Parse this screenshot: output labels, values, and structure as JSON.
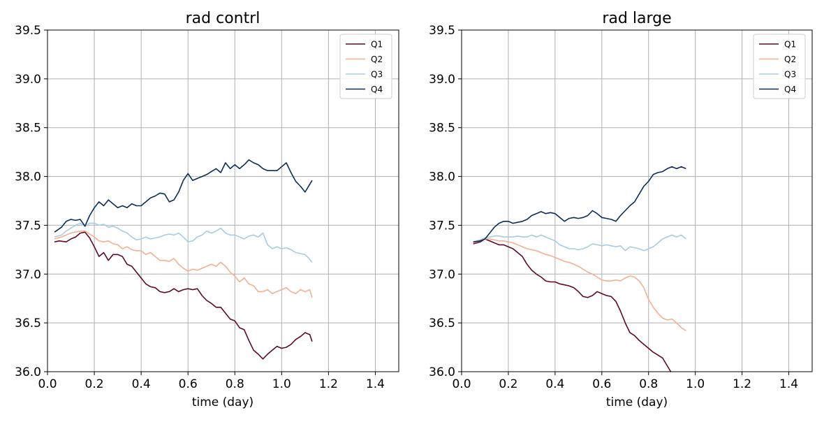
{
  "figure": {
    "panels": [
      {
        "title": "rad contrl",
        "xlabel": "time (day)"
      },
      {
        "title": "rad large",
        "xlabel": "time (day)"
      }
    ]
  },
  "chart_data": [
    {
      "type": "line",
      "title": "rad contrl",
      "xlabel": "time (day)",
      "ylabel": "",
      "xlim": [
        0.0,
        1.5
      ],
      "ylim": [
        36.0,
        39.5
      ],
      "xticks": [
        "0.0",
        "0.2",
        "0.4",
        "0.6",
        "0.8",
        "1.0",
        "1.2",
        "1.4"
      ],
      "yticks": [
        "36.0",
        "36.5",
        "37.0",
        "37.5",
        "38.0",
        "38.5",
        "39.0",
        "39.5"
      ],
      "grid": true,
      "legend_position": "top-right",
      "series": [
        {
          "name": "Q1",
          "color": "#5c0a2a",
          "x": [
            0.03,
            0.05,
            0.08,
            0.1,
            0.12,
            0.14,
            0.16,
            0.18,
            0.2,
            0.22,
            0.24,
            0.26,
            0.28,
            0.3,
            0.32,
            0.34,
            0.36,
            0.38,
            0.4,
            0.42,
            0.44,
            0.46,
            0.48,
            0.5,
            0.52,
            0.54,
            0.56,
            0.58,
            0.6,
            0.62,
            0.64,
            0.66,
            0.68,
            0.7,
            0.72,
            0.74,
            0.76,
            0.78,
            0.8,
            0.82,
            0.84,
            0.86,
            0.88,
            0.9,
            0.92,
            0.94,
            0.96,
            0.98,
            1.0,
            1.02,
            1.04,
            1.06,
            1.08,
            1.1,
            1.12,
            1.13
          ],
          "y": [
            37.33,
            37.34,
            37.33,
            37.36,
            37.38,
            37.42,
            37.43,
            37.37,
            37.28,
            37.18,
            37.22,
            37.14,
            37.2,
            37.2,
            37.18,
            37.1,
            37.08,
            37.02,
            36.96,
            36.9,
            36.87,
            36.86,
            36.82,
            36.81,
            36.82,
            36.85,
            36.82,
            36.84,
            36.85,
            36.84,
            36.85,
            36.78,
            36.73,
            36.7,
            36.66,
            36.66,
            36.6,
            36.54,
            36.52,
            36.45,
            36.43,
            36.32,
            36.22,
            36.18,
            36.13,
            36.18,
            36.22,
            36.26,
            36.24,
            36.25,
            36.28,
            36.33,
            36.36,
            36.4,
            36.38,
            36.31
          ]
        },
        {
          "name": "Q2",
          "color": "#f3b093",
          "x": [
            0.03,
            0.06,
            0.08,
            0.1,
            0.12,
            0.14,
            0.16,
            0.18,
            0.2,
            0.22,
            0.24,
            0.26,
            0.28,
            0.3,
            0.32,
            0.34,
            0.36,
            0.38,
            0.4,
            0.42,
            0.44,
            0.46,
            0.48,
            0.5,
            0.52,
            0.54,
            0.56,
            0.58,
            0.6,
            0.62,
            0.64,
            0.66,
            0.68,
            0.7,
            0.72,
            0.74,
            0.76,
            0.78,
            0.8,
            0.82,
            0.84,
            0.86,
            0.88,
            0.9,
            0.92,
            0.94,
            0.96,
            0.98,
            1.0,
            1.02,
            1.04,
            1.06,
            1.08,
            1.1,
            1.12,
            1.13
          ],
          "y": [
            37.36,
            37.38,
            37.4,
            37.42,
            37.43,
            37.44,
            37.44,
            37.41,
            37.38,
            37.34,
            37.33,
            37.34,
            37.31,
            37.3,
            37.26,
            37.28,
            37.25,
            37.24,
            37.24,
            37.2,
            37.22,
            37.18,
            37.14,
            37.14,
            37.13,
            37.16,
            37.1,
            37.06,
            37.03,
            37.05,
            37.04,
            37.06,
            37.08,
            37.1,
            37.08,
            37.12,
            37.08,
            37.02,
            36.98,
            36.92,
            36.96,
            36.9,
            36.88,
            36.82,
            36.82,
            36.84,
            36.8,
            36.82,
            36.84,
            36.86,
            36.82,
            36.8,
            36.84,
            36.82,
            36.84,
            36.76
          ]
        },
        {
          "name": "Q3",
          "color": "#a6cde2",
          "x": [
            0.03,
            0.06,
            0.08,
            0.1,
            0.12,
            0.14,
            0.16,
            0.18,
            0.2,
            0.22,
            0.24,
            0.26,
            0.28,
            0.3,
            0.32,
            0.34,
            0.36,
            0.38,
            0.4,
            0.42,
            0.44,
            0.46,
            0.48,
            0.5,
            0.52,
            0.54,
            0.56,
            0.58,
            0.6,
            0.62,
            0.64,
            0.66,
            0.68,
            0.7,
            0.72,
            0.74,
            0.76,
            0.78,
            0.8,
            0.82,
            0.84,
            0.86,
            0.88,
            0.9,
            0.92,
            0.94,
            0.96,
            0.98,
            1.0,
            1.02,
            1.04,
            1.06,
            1.08,
            1.1,
            1.12,
            1.13
          ],
          "y": [
            37.38,
            37.4,
            37.44,
            37.47,
            37.5,
            37.52,
            37.49,
            37.52,
            37.52,
            37.5,
            37.51,
            37.48,
            37.49,
            37.47,
            37.44,
            37.42,
            37.38,
            37.35,
            37.36,
            37.38,
            37.36,
            37.37,
            37.38,
            37.4,
            37.41,
            37.4,
            37.42,
            37.38,
            37.33,
            37.34,
            37.38,
            37.4,
            37.44,
            37.42,
            37.44,
            37.47,
            37.42,
            37.4,
            37.4,
            37.38,
            37.36,
            37.39,
            37.4,
            37.38,
            37.42,
            37.3,
            37.26,
            37.28,
            37.26,
            37.27,
            37.25,
            37.22,
            37.21,
            37.2,
            37.15,
            37.12
          ]
        },
        {
          "name": "Q4",
          "color": "#0c2d57",
          "x": [
            0.03,
            0.06,
            0.08,
            0.1,
            0.12,
            0.14,
            0.16,
            0.18,
            0.2,
            0.22,
            0.24,
            0.26,
            0.28,
            0.3,
            0.32,
            0.34,
            0.36,
            0.38,
            0.4,
            0.42,
            0.44,
            0.46,
            0.48,
            0.5,
            0.52,
            0.54,
            0.56,
            0.58,
            0.6,
            0.62,
            0.64,
            0.66,
            0.68,
            0.7,
            0.72,
            0.74,
            0.76,
            0.78,
            0.8,
            0.82,
            0.84,
            0.86,
            0.88,
            0.9,
            0.92,
            0.94,
            0.96,
            0.98,
            1.0,
            1.02,
            1.04,
            1.06,
            1.08,
            1.1,
            1.12,
            1.13
          ],
          "y": [
            37.43,
            37.48,
            37.54,
            37.56,
            37.55,
            37.56,
            37.49,
            37.6,
            37.68,
            37.74,
            37.7,
            37.76,
            37.72,
            37.68,
            37.7,
            37.68,
            37.72,
            37.7,
            37.7,
            37.74,
            37.78,
            37.8,
            37.83,
            37.82,
            37.74,
            37.76,
            37.84,
            37.96,
            38.03,
            37.96,
            37.98,
            38.0,
            38.02,
            38.05,
            38.08,
            38.04,
            38.14,
            38.08,
            38.12,
            38.08,
            38.12,
            38.17,
            38.14,
            38.12,
            38.08,
            38.06,
            38.06,
            38.06,
            38.1,
            38.14,
            38.04,
            37.95,
            37.9,
            37.84,
            37.92,
            37.96
          ]
        }
      ]
    },
    {
      "type": "line",
      "title": "rad large",
      "xlabel": "time (day)",
      "ylabel": "",
      "xlim": [
        0.0,
        1.5
      ],
      "ylim": [
        36.0,
        39.5
      ],
      "xticks": [
        "0.0",
        "0.2",
        "0.4",
        "0.6",
        "0.8",
        "1.0",
        "1.2",
        "1.4"
      ],
      "yticks": [
        "36.0",
        "36.5",
        "37.0",
        "37.5",
        "38.0",
        "38.5",
        "39.0",
        "39.5"
      ],
      "grid": true,
      "legend_position": "top-right",
      "series": [
        {
          "name": "Q1",
          "color": "#5c0a2a",
          "x": [
            0.05,
            0.08,
            0.1,
            0.12,
            0.14,
            0.16,
            0.18,
            0.2,
            0.22,
            0.24,
            0.26,
            0.28,
            0.3,
            0.32,
            0.34,
            0.36,
            0.38,
            0.4,
            0.42,
            0.44,
            0.46,
            0.48,
            0.5,
            0.52,
            0.54,
            0.56,
            0.58,
            0.6,
            0.62,
            0.64,
            0.66,
            0.68,
            0.7,
            0.72,
            0.74,
            0.76,
            0.78,
            0.8,
            0.82,
            0.84,
            0.86,
            0.88,
            0.9,
            0.92
          ],
          "y": [
            37.31,
            37.33,
            37.36,
            37.34,
            37.32,
            37.3,
            37.3,
            37.28,
            37.26,
            37.22,
            37.18,
            37.1,
            37.04,
            37.0,
            36.97,
            36.93,
            36.92,
            36.92,
            36.9,
            36.89,
            36.88,
            36.86,
            36.82,
            36.77,
            36.76,
            36.78,
            36.82,
            36.8,
            36.78,
            36.77,
            36.72,
            36.62,
            36.5,
            36.4,
            36.37,
            36.32,
            36.28,
            36.24,
            36.2,
            36.17,
            36.14,
            36.06,
            35.98,
            35.9
          ]
        },
        {
          "name": "Q2",
          "color": "#f3b093",
          "x": [
            0.05,
            0.08,
            0.1,
            0.12,
            0.14,
            0.16,
            0.18,
            0.2,
            0.22,
            0.24,
            0.26,
            0.28,
            0.3,
            0.32,
            0.34,
            0.36,
            0.38,
            0.4,
            0.42,
            0.44,
            0.46,
            0.48,
            0.5,
            0.52,
            0.54,
            0.56,
            0.58,
            0.6,
            0.62,
            0.64,
            0.66,
            0.68,
            0.7,
            0.72,
            0.74,
            0.76,
            0.78,
            0.8,
            0.82,
            0.84,
            0.86,
            0.88,
            0.9,
            0.92,
            0.94,
            0.96
          ],
          "y": [
            37.32,
            37.34,
            37.36,
            37.36,
            37.35,
            37.34,
            37.34,
            37.33,
            37.32,
            37.3,
            37.28,
            37.26,
            37.25,
            37.24,
            37.22,
            37.2,
            37.19,
            37.17,
            37.15,
            37.13,
            37.12,
            37.1,
            37.08,
            37.05,
            37.02,
            37.0,
            36.97,
            36.94,
            36.93,
            36.93,
            36.94,
            36.93,
            36.96,
            36.98,
            36.97,
            36.93,
            36.86,
            36.74,
            36.66,
            36.6,
            36.55,
            36.53,
            36.54,
            36.5,
            36.45,
            36.42
          ]
        },
        {
          "name": "Q3",
          "color": "#a6cde2",
          "x": [
            0.05,
            0.08,
            0.1,
            0.12,
            0.14,
            0.16,
            0.18,
            0.2,
            0.22,
            0.24,
            0.26,
            0.28,
            0.3,
            0.32,
            0.34,
            0.36,
            0.38,
            0.4,
            0.42,
            0.44,
            0.46,
            0.48,
            0.5,
            0.52,
            0.54,
            0.56,
            0.58,
            0.6,
            0.62,
            0.64,
            0.66,
            0.68,
            0.7,
            0.72,
            0.74,
            0.76,
            0.78,
            0.8,
            0.82,
            0.84,
            0.86,
            0.88,
            0.9,
            0.92,
            0.94,
            0.96
          ],
          "y": [
            37.33,
            37.35,
            37.37,
            37.38,
            37.39,
            37.39,
            37.38,
            37.38,
            37.38,
            37.39,
            37.38,
            37.38,
            37.4,
            37.38,
            37.4,
            37.38,
            37.36,
            37.34,
            37.3,
            37.28,
            37.26,
            37.26,
            37.25,
            37.26,
            37.28,
            37.31,
            37.3,
            37.29,
            37.3,
            37.29,
            37.28,
            37.29,
            37.24,
            37.28,
            37.27,
            37.26,
            37.24,
            37.26,
            37.28,
            37.32,
            37.36,
            37.38,
            37.4,
            37.38,
            37.4,
            37.36
          ]
        },
        {
          "name": "Q4",
          "color": "#0c2d57",
          "x": [
            0.05,
            0.08,
            0.1,
            0.12,
            0.14,
            0.16,
            0.18,
            0.2,
            0.22,
            0.24,
            0.26,
            0.28,
            0.3,
            0.32,
            0.34,
            0.36,
            0.38,
            0.4,
            0.42,
            0.44,
            0.46,
            0.48,
            0.5,
            0.52,
            0.54,
            0.56,
            0.58,
            0.6,
            0.62,
            0.64,
            0.66,
            0.68,
            0.7,
            0.72,
            0.74,
            0.76,
            0.78,
            0.8,
            0.82,
            0.84,
            0.86,
            0.88,
            0.9,
            0.92,
            0.94,
            0.96
          ],
          "y": [
            37.33,
            37.34,
            37.36,
            37.42,
            37.48,
            37.52,
            37.54,
            37.54,
            37.52,
            37.53,
            37.54,
            37.56,
            37.6,
            37.62,
            37.64,
            37.62,
            37.63,
            37.62,
            37.58,
            37.54,
            37.57,
            37.58,
            37.57,
            37.58,
            37.6,
            37.65,
            37.62,
            37.58,
            37.57,
            37.56,
            37.54,
            37.6,
            37.65,
            37.7,
            37.74,
            37.82,
            37.9,
            37.95,
            38.02,
            38.04,
            38.05,
            38.08,
            38.1,
            38.08,
            38.1,
            38.08
          ]
        }
      ]
    }
  ]
}
